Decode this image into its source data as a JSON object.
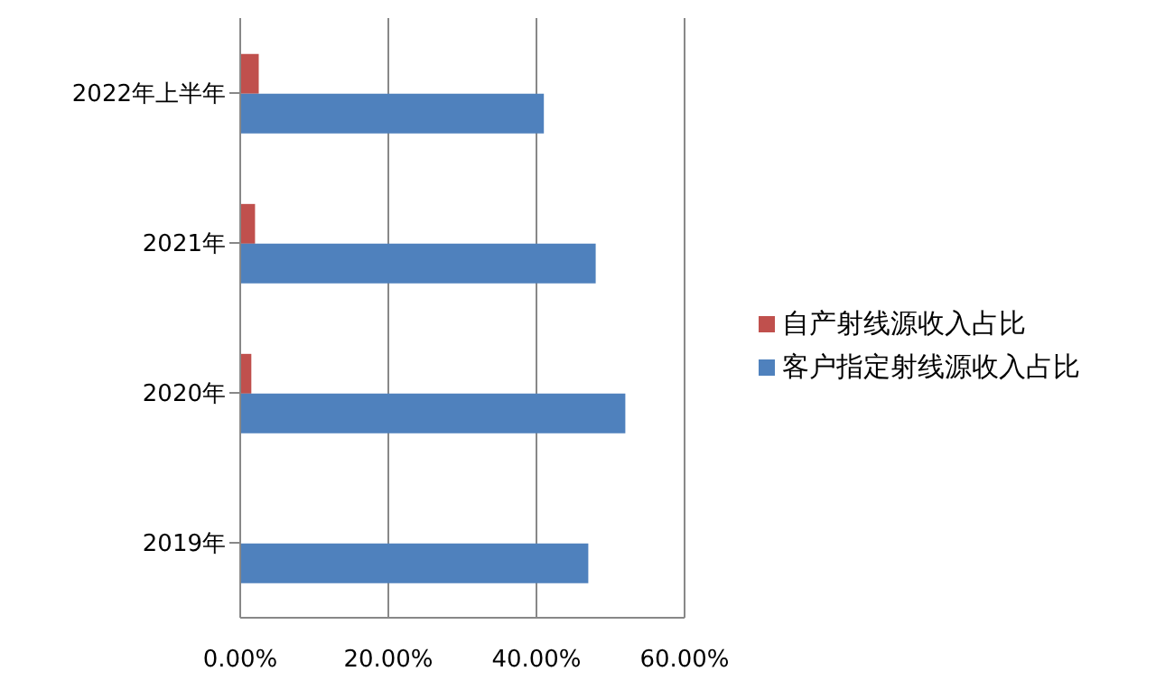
{
  "chart_data": {
    "type": "bar",
    "orientation": "horizontal",
    "categories": [
      "2022年上半年",
      "2021年",
      "2020年",
      "2019年"
    ],
    "series": [
      {
        "name": "自产射线源收入占比",
        "color": "#c0504d",
        "values": [
          2.5,
          2,
          1.5,
          null
        ]
      },
      {
        "name": "客户指定射线源收入占比",
        "color": "#4f81bd",
        "values": [
          41,
          48,
          52,
          47
        ]
      }
    ],
    "xlim": [
      0,
      60
    ],
    "xticks": [
      {
        "value": 0,
        "label": "0.00%"
      },
      {
        "value": 20,
        "label": "20.00%"
      },
      {
        "value": 40,
        "label": "40.00%"
      },
      {
        "value": 60,
        "label": "60.00%"
      }
    ],
    "grid": "x",
    "legend": "right"
  }
}
